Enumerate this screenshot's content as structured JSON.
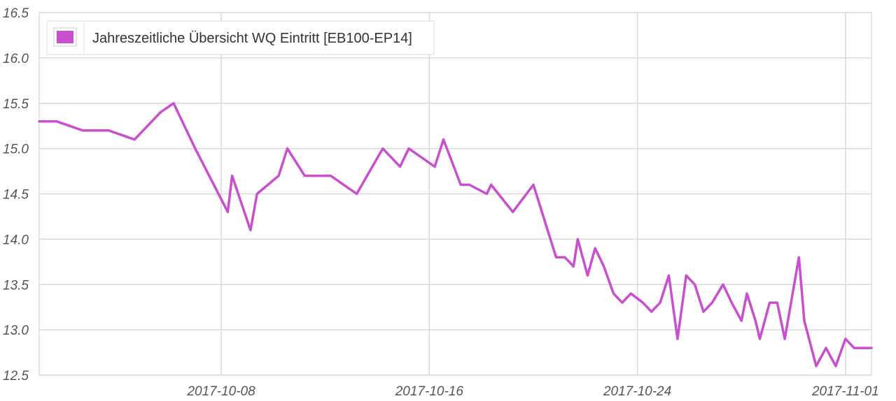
{
  "chart_data": {
    "type": "line",
    "title": "",
    "xlabel": "",
    "ylabel": "",
    "ylim": [
      12.5,
      16.5
    ],
    "xlim": [
      "2017-10-01",
      "2017-11-02"
    ],
    "y_ticks": [
      "16.5",
      "16.0",
      "15.5",
      "15.0",
      "14.5",
      "14.0",
      "13.5",
      "13.0",
      "12.5"
    ],
    "x_ticks": [
      "2017-10-08",
      "2017-10-16",
      "2017-10-24",
      "2017-11-01"
    ],
    "grid": true,
    "legend_position": "top-left",
    "legend": [
      "Jahreszeitliche Übersicht WQ Eintritt [EB100-EP14]"
    ],
    "series": [
      {
        "name": "Jahreszeitliche Übersicht WQ Eintritt [EB100-EP14]",
        "color": "#c94fce",
        "points": [
          [
            "2017-10-01T00:00",
            15.3
          ],
          [
            "2017-10-01T16:00",
            15.3
          ],
          [
            "2017-10-02T16:00",
            15.2
          ],
          [
            "2017-10-03T16:00",
            15.2
          ],
          [
            "2017-10-04T16:00",
            15.1
          ],
          [
            "2017-10-05T08:00",
            15.3
          ],
          [
            "2017-10-05T16:00",
            15.4
          ],
          [
            "2017-10-06T04:00",
            15.5
          ],
          [
            "2017-10-07T00:00",
            15.0
          ],
          [
            "2017-10-08T06:00",
            14.3
          ],
          [
            "2017-10-08T10:00",
            14.7
          ],
          [
            "2017-10-09T03:00",
            14.1
          ],
          [
            "2017-10-09T09:00",
            14.5
          ],
          [
            "2017-10-10T05:00",
            14.7
          ],
          [
            "2017-10-10T13:00",
            15.0
          ],
          [
            "2017-10-11T05:00",
            14.7
          ],
          [
            "2017-10-12T05:00",
            14.7
          ],
          [
            "2017-10-13T05:00",
            14.5
          ],
          [
            "2017-10-14T05:00",
            15.0
          ],
          [
            "2017-10-14T21:00",
            14.8
          ],
          [
            "2017-10-15T05:00",
            15.0
          ],
          [
            "2017-10-16T05:00",
            14.8
          ],
          [
            "2017-10-16T13:00",
            15.1
          ],
          [
            "2017-10-17T05:00",
            14.6
          ],
          [
            "2017-10-17T13:00",
            14.6
          ],
          [
            "2017-10-18T05:00",
            14.5
          ],
          [
            "2017-10-18T09:00",
            14.6
          ],
          [
            "2017-10-19T05:00",
            14.3
          ],
          [
            "2017-10-20T00:00",
            14.6
          ],
          [
            "2017-10-20T21:00",
            13.8
          ],
          [
            "2017-10-21T05:00",
            13.8
          ],
          [
            "2017-10-21T13:00",
            13.7
          ],
          [
            "2017-10-21T17:00",
            14.0
          ],
          [
            "2017-10-22T02:00",
            13.6
          ],
          [
            "2017-10-22T09:00",
            13.9
          ],
          [
            "2017-10-22T17:00",
            13.7
          ],
          [
            "2017-10-23T02:00",
            13.4
          ],
          [
            "2017-10-23T10:00",
            13.3
          ],
          [
            "2017-10-23T18:00",
            13.4
          ],
          [
            "2017-10-24T05:00",
            13.3
          ],
          [
            "2017-10-24T13:00",
            13.2
          ],
          [
            "2017-10-24T21:00",
            13.3
          ],
          [
            "2017-10-25T05:00",
            13.6
          ],
          [
            "2017-10-25T13:00",
            12.9
          ],
          [
            "2017-10-25T21:00",
            13.6
          ],
          [
            "2017-10-26T05:00",
            13.5
          ],
          [
            "2017-10-26T13:00",
            13.2
          ],
          [
            "2017-10-26T21:00",
            13.3
          ],
          [
            "2017-10-27T07:00",
            13.5
          ],
          [
            "2017-10-27T15:00",
            13.3
          ],
          [
            "2017-10-28T00:00",
            13.1
          ],
          [
            "2017-10-28T05:00",
            13.4
          ],
          [
            "2017-10-28T13:00",
            13.1
          ],
          [
            "2017-10-28T17:00",
            12.9
          ],
          [
            "2017-10-29T02:00",
            13.3
          ],
          [
            "2017-10-29T09:00",
            13.3
          ],
          [
            "2017-10-29T16:00",
            12.9
          ],
          [
            "2017-10-30T05:00",
            13.8
          ],
          [
            "2017-10-30T10:00",
            13.1
          ],
          [
            "2017-10-30T21:00",
            12.6
          ],
          [
            "2017-10-31T06:00",
            12.8
          ],
          [
            "2017-10-31T15:00",
            12.6
          ],
          [
            "2017-11-01T00:00",
            12.9
          ],
          [
            "2017-11-01T08:00",
            12.8
          ],
          [
            "2017-11-02T00:00",
            12.8
          ]
        ]
      }
    ]
  }
}
